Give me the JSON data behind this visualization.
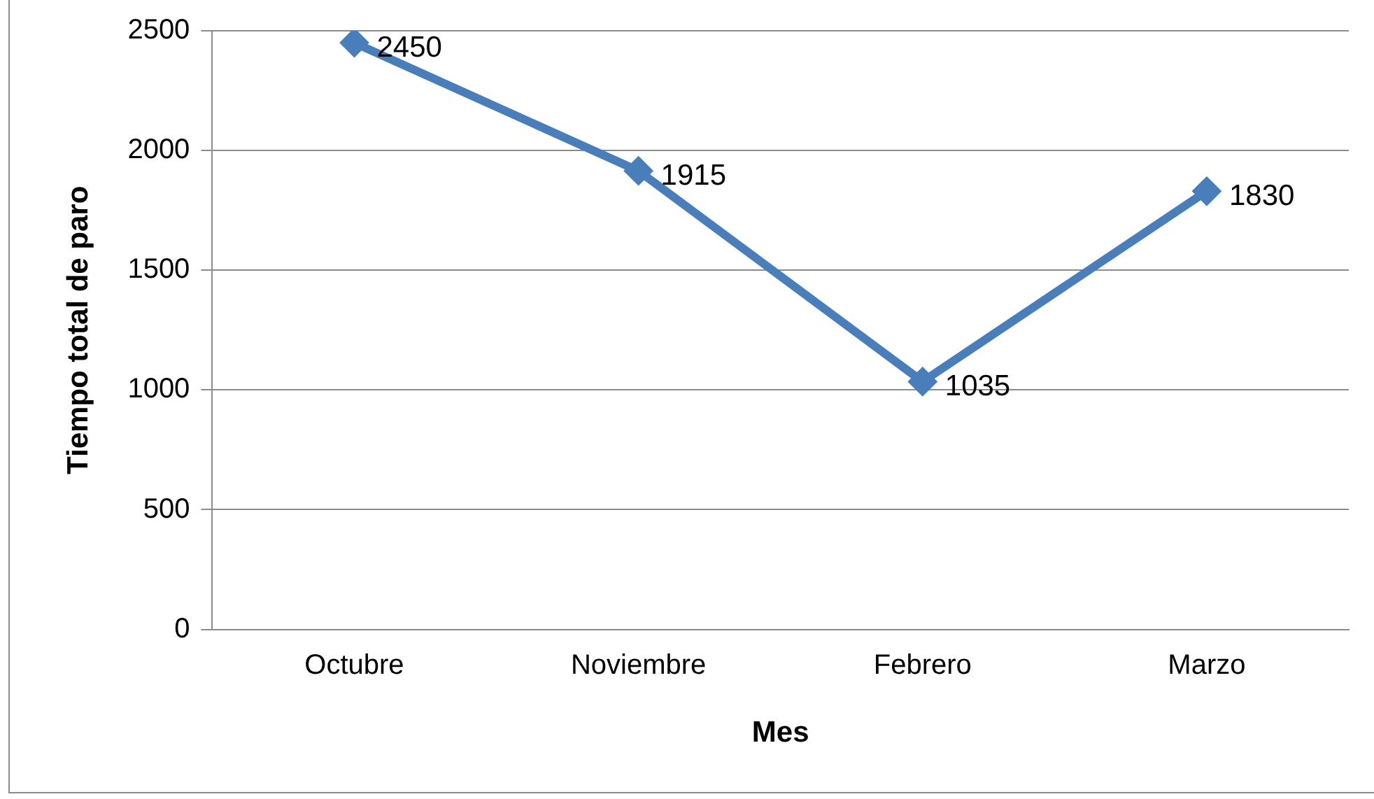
{
  "chart_data": {
    "type": "line",
    "xlabel": "Mes",
    "ylabel": "Tiempo total de paro",
    "categories": [
      "Octubre",
      "Noviembre",
      "Febrero",
      "Marzo"
    ],
    "series": [
      {
        "color": "#4a7ebb",
        "values": [
          2450,
          1915,
          1035,
          1830
        ]
      }
    ],
    "ylim": [
      0,
      2500
    ],
    "yticks": [
      0,
      500,
      1000,
      1500,
      2000,
      2500
    ],
    "grid": "y",
    "legend": false,
    "marker": "diamond",
    "line_style": "solid",
    "data_labels": true
  }
}
